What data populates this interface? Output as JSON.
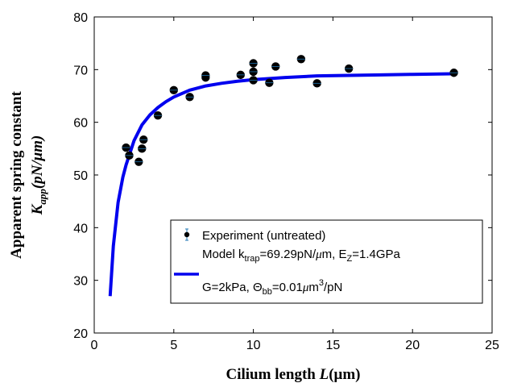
{
  "chart_data": {
    "type": "scatter",
    "xlim": [
      0,
      25
    ],
    "ylim": [
      20,
      80
    ],
    "xticks": [
      0,
      5,
      10,
      15,
      20,
      25
    ],
    "yticks": [
      20,
      30,
      40,
      50,
      60,
      70,
      80
    ],
    "grid": false,
    "legend_position": "bottom-right",
    "xlabel": {
      "main": "Cilium length ",
      "var": "L",
      "unit": "(μm)"
    },
    "ylabel": {
      "line1": "Apparent spring constant",
      "var": "K",
      "sub": "app",
      "unit": "(pN/μm)"
    },
    "series": [
      {
        "name": "Experiment (untreated)",
        "kind": "points",
        "color": "#000000",
        "errorbar_color": "#1f77b4",
        "x": [
          2.0,
          2.2,
          2.8,
          3.0,
          3.1,
          4.0,
          5.0,
          6.0,
          7.0,
          7.0,
          9.2,
          10.0,
          10.0,
          10.0,
          11.0,
          11.4,
          13.0,
          14.0,
          16.0,
          22.6
        ],
        "y": [
          55.2,
          53.7,
          52.5,
          55.0,
          56.7,
          61.3,
          66.1,
          64.8,
          68.5,
          68.9,
          69.0,
          71.2,
          69.6,
          68.0,
          67.5,
          70.6,
          72.0,
          67.4,
          70.2,
          69.4
        ]
      },
      {
        "name": "Model k_trap=69.29pN/μm, E_Z=1.4GPa G=2kPa, Θ_bb=0.01μm³/pN",
        "kind": "curve",
        "color": "#0000ee",
        "x": [
          1.0,
          1.2,
          1.5,
          1.8,
          2.0,
          2.5,
          3.0,
          3.5,
          4.0,
          4.5,
          5.0,
          6.0,
          7.0,
          8.0,
          9.0,
          10.0,
          12.0,
          14.0,
          16.0,
          18.0,
          20.0,
          22.5
        ],
        "y": [
          27.0,
          36.5,
          44.8,
          49.6,
          51.9,
          56.5,
          59.5,
          61.4,
          62.8,
          63.9,
          64.8,
          66.1,
          66.9,
          67.4,
          67.8,
          68.1,
          68.5,
          68.8,
          68.9,
          69.0,
          69.1,
          69.2
        ]
      }
    ],
    "legend": {
      "entry1": "Experiment (untreated)",
      "entry2_line1": {
        "a": "Model k",
        "sub1": "trap",
        "b": "=69.29pN/",
        "mu": "μ",
        "c": "m, E",
        "sub2": "Z",
        "d": "=1.4GPa"
      },
      "entry2_line2": {
        "a": "G=2kPa, ",
        "theta": "Θ",
        "sub": "bb",
        "b": "=0.01",
        "mu": "μ",
        "c": "m",
        "sup": "3",
        "d": "/pN"
      }
    }
  }
}
